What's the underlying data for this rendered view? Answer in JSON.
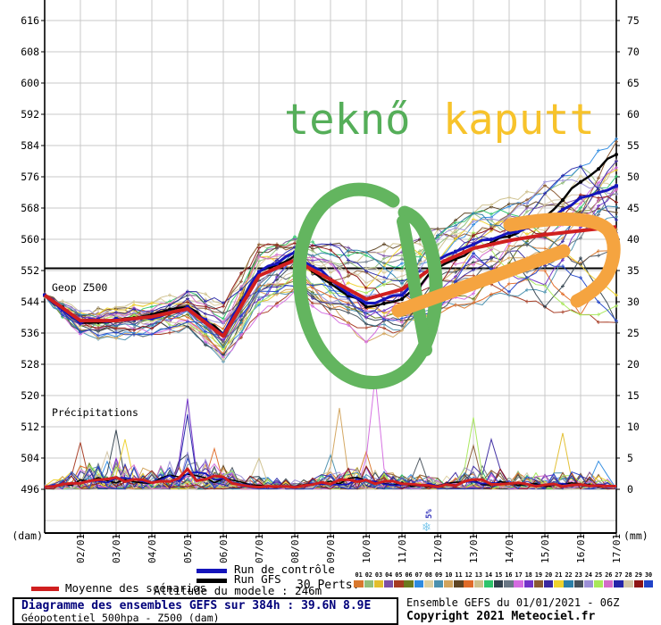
{
  "watermark": {
    "word1": "teknő",
    "word2": "kaputt",
    "color1": "#55AE59",
    "color2": "#F7C32B"
  },
  "panel_labels": {
    "geop": "Geop Z500",
    "precip": "Précipitations"
  },
  "axes": {
    "left_unit": "(dam)",
    "right_unit": "(mm)",
    "left_ticks": [
      616,
      608,
      600,
      592,
      584,
      576,
      568,
      560,
      552,
      544,
      536,
      528,
      520,
      512,
      504,
      496
    ],
    "right_ticks": [
      75,
      70,
      65,
      60,
      55,
      50,
      45,
      40,
      35,
      30,
      25,
      20,
      15,
      10,
      5,
      0
    ]
  },
  "legend": {
    "mean": {
      "label": "Moyenne des scénarios",
      "color": "#D01F1F"
    },
    "control": {
      "label": "Run de contrôle",
      "color": "#1515BB"
    },
    "gfs": {
      "label": "Run GFS",
      "color": "#000000"
    },
    "perts_label": "30 Perts.",
    "altitude": "Altitude du modele : 246m"
  },
  "snow_marker": {
    "label": "5%",
    "day": 10.75,
    "flake_color": "#7FC9EC",
    "text_color": "#3333BB"
  },
  "annotations": {
    "circle_color": "#63B55F",
    "arrow_color": "#F5A440"
  },
  "footer": {
    "title": "Diagramme des ensembles GEFS sur 384h : 39.6N 8.9E",
    "subtitle": "Géopotentiel 500hpa - Z500 (dam)",
    "run": "Ensemble GEFS du 01/01/2021 - 06Z",
    "copyright": "Copyright 2021 Meteociel.fr"
  },
  "chart_data": {
    "type": "line",
    "title": "Diagramme des ensembles GEFS sur 384h : 39.6N 8.9E",
    "x_axis": "days 01/01 to 17/01, 40px per day",
    "date_labels": [
      "02/01",
      "03/01",
      "04/01",
      "05/01",
      "06/01",
      "07/01",
      "08/01",
      "09/01",
      "10/01",
      "11/01",
      "12/01",
      "13/01",
      "14/01",
      "15/01",
      "16/01",
      "17/01"
    ],
    "z500": {
      "unit": "dam",
      "ref_line": 552,
      "ylim_labels": [
        496,
        616
      ],
      "mean": [
        545,
        538.5,
        538.5,
        539.5,
        541.5,
        534.5,
        550,
        554,
        549,
        544,
        546.5,
        553,
        557,
        559,
        560.5,
        561.5,
        562.5
      ],
      "control": [
        545,
        538,
        539,
        539,
        542,
        535,
        551,
        556,
        549,
        543,
        545,
        554,
        558,
        561,
        564,
        570,
        573
      ],
      "gfs": [
        545,
        538,
        538.5,
        540,
        542,
        535,
        551,
        555,
        548,
        542,
        544,
        552,
        557,
        560,
        565,
        574,
        581
      ],
      "env_min": [
        544,
        535,
        534,
        535,
        537,
        528,
        540,
        546,
        540,
        533,
        536,
        540,
        543,
        545,
        542,
        540,
        538
      ],
      "env_max": [
        546,
        541,
        542,
        543,
        546,
        543,
        558,
        560,
        558,
        556,
        558,
        562,
        566,
        570,
        574,
        578,
        585
      ]
    },
    "precip": {
      "unit": "mm",
      "ylim": [
        0,
        80
      ],
      "mean": [
        0.3,
        1.2,
        1.5,
        1.0,
        2.5,
        1.5,
        0.5,
        0.4,
        1.0,
        1.5,
        0.8,
        0.6,
        1.2,
        0.8,
        0.6,
        0.8,
        0.5
      ],
      "noise_max": [
        1,
        4,
        5,
        3,
        6,
        4,
        2,
        1.5,
        3,
        4,
        2.5,
        2,
        4,
        3,
        2.5,
        3,
        2
      ],
      "spikes": [
        {
          "day": 0.9,
          "mm": 7.5,
          "member": 4
        },
        {
          "day": 1.8,
          "mm": 6,
          "member": 27
        },
        {
          "day": 2.0,
          "mm": 9.5,
          "member": 14
        },
        {
          "day": 2.25,
          "mm": 8,
          "member": 20
        },
        {
          "day": 3.9,
          "mm": 14.5,
          "member": 17
        },
        {
          "day": 3.9,
          "mm": 12,
          "member": 26
        },
        {
          "day": 4.75,
          "mm": 6.5,
          "member": 11
        },
        {
          "day": 6.0,
          "mm": 5,
          "member": 12
        },
        {
          "day": 7.9,
          "mm": 5.5,
          "member": 8
        },
        {
          "day": 8.25,
          "mm": 13,
          "member": 9
        },
        {
          "day": 8.9,
          "mm": 6,
          "member": 0
        },
        {
          "day": 9.25,
          "mm": 18,
          "member": 16
        },
        {
          "day": 10.5,
          "mm": 5,
          "member": 22
        },
        {
          "day": 11.9,
          "mm": 7,
          "member": 18
        },
        {
          "day": 12.1,
          "mm": 11.5,
          "member": 24
        },
        {
          "day": 12.5,
          "mm": 8,
          "member": 19
        },
        {
          "day": 14.6,
          "mm": 9,
          "member": 2
        },
        {
          "day": 15.6,
          "mm": 4.5,
          "member": 6
        }
      ]
    },
    "members": [
      {
        "id": "01",
        "color": "#D9782D"
      },
      {
        "id": "02",
        "color": "#92BE7A"
      },
      {
        "id": "03",
        "color": "#E2BE2C"
      },
      {
        "id": "04",
        "color": "#7C4FA5"
      },
      {
        "id": "05",
        "color": "#A63A22"
      },
      {
        "id": "06",
        "color": "#6B7A1E"
      },
      {
        "id": "07",
        "color": "#2E8BE0"
      },
      {
        "id": "08",
        "color": "#DCCFA0"
      },
      {
        "id": "09",
        "color": "#4A90AE"
      },
      {
        "id": "10",
        "color": "#D2A35C"
      },
      {
        "id": "11",
        "color": "#5E4423"
      },
      {
        "id": "12",
        "color": "#E06B28"
      },
      {
        "id": "13",
        "color": "#CDC08C"
      },
      {
        "id": "14",
        "color": "#2EC46B"
      },
      {
        "id": "15",
        "color": "#32414E"
      },
      {
        "id": "16",
        "color": "#697785"
      },
      {
        "id": "17",
        "color": "#D46BE0"
      },
      {
        "id": "18",
        "color": "#7232C8"
      },
      {
        "id": "19",
        "color": "#8A5A32"
      },
      {
        "id": "20",
        "color": "#3A28A0"
      },
      {
        "id": "21",
        "color": "#EED22C"
      },
      {
        "id": "22",
        "color": "#2B7FA8"
      },
      {
        "id": "23",
        "color": "#46505A"
      },
      {
        "id": "24",
        "color": "#9B8FD6"
      },
      {
        "id": "25",
        "color": "#A8E85A"
      },
      {
        "id": "26",
        "color": "#D46BC8"
      },
      {
        "id": "27",
        "color": "#2424A8"
      },
      {
        "id": "28",
        "color": "#D2C4A4"
      },
      {
        "id": "29",
        "color": "#8E1414"
      },
      {
        "id": "30",
        "color": "#2244C8"
      }
    ]
  }
}
